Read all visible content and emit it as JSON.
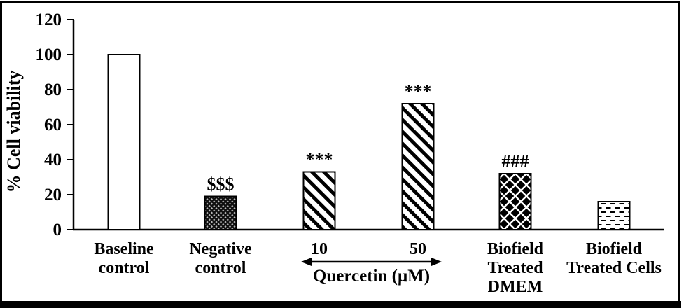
{
  "colors": {
    "ink": "#000000",
    "background": "#ffffff",
    "weave_light": "#bdbdbd",
    "weave_dark": "#101010"
  },
  "chart_data": {
    "type": "bar",
    "title": "",
    "xlabel": "",
    "ylabel": "% Cell viability",
    "ylim": [
      0,
      120
    ],
    "ytick_step": 20,
    "ytick_labels": [
      "0",
      "20",
      "40",
      "60",
      "80",
      "100",
      "120"
    ],
    "grid": false,
    "legend": "none",
    "categories": [
      "Baseline control",
      "Negative control",
      "10",
      "50",
      "Biofield Treated DMEM",
      "Biofield Treated Cells"
    ],
    "values": [
      100,
      19,
      33,
      72,
      32,
      16
    ],
    "significance_labels": [
      "",
      "$$$",
      "***",
      "***",
      "###",
      ""
    ],
    "bar_fills": [
      "plain-white",
      "dense-weave",
      "diagonal-stripes",
      "diagonal-stripes",
      "black-diamonds",
      "horizontal-dashes"
    ],
    "category_label_lines": [
      [
        "Baseline",
        "control"
      ],
      [
        "Negative",
        "control"
      ],
      [
        "10"
      ],
      [
        "50"
      ],
      [
        "Biofield",
        "Treated",
        "DMEM"
      ],
      [
        "Biofield",
        "Treated Cells"
      ]
    ],
    "x_group_annotation": {
      "label": "Quercetin (μM)",
      "arrow": "double-headed",
      "spans_categories": [
        "10",
        "50"
      ]
    }
  }
}
